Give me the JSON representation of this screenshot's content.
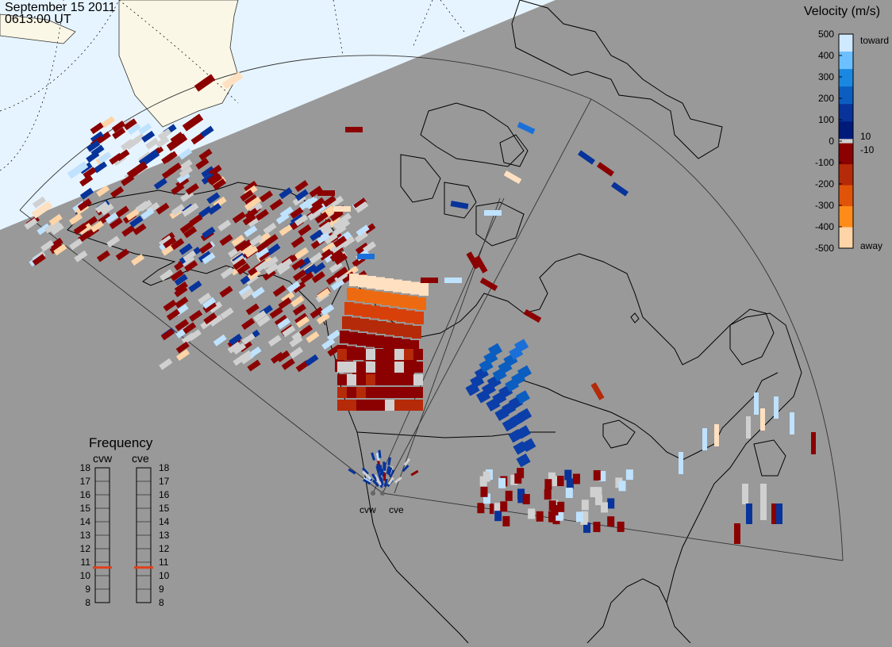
{
  "header": {
    "date": "September 15 2011",
    "time": "0613:00 UT"
  },
  "colorbar": {
    "title": "Velocity (m/s)",
    "ticks": [
      "500",
      "400",
      "300",
      "200",
      "100",
      "0",
      "-100",
      "-200",
      "-300",
      "-400",
      "-500"
    ],
    "tick_values": [
      500,
      400,
      300,
      200,
      100,
      0,
      -100,
      -200,
      -300,
      -400,
      -500
    ],
    "inner_ticks": [
      "10",
      "-10"
    ],
    "toward_label": "toward",
    "away_label": "away",
    "colors_top_to_bottom": [
      "#cfe9ff",
      "#6cc0ff",
      "#1a88e0",
      "#0b5ec0",
      "#07339a",
      "#001a7a",
      "#ffffff",
      "#8b0000",
      "#b52a08",
      "#e0540a",
      "#ff8c1a",
      "#ffd4a6"
    ],
    "zero_band_color": "#d0d0d0"
  },
  "frequency": {
    "title": "Frequency",
    "radars": [
      "cvw",
      "cve"
    ],
    "scale": [
      "18",
      "17",
      "16",
      "15",
      "14",
      "13",
      "12",
      "11",
      "10",
      "9",
      "8"
    ],
    "cvw_mhz": 10.6,
    "cve_mhz": 10.6,
    "marker_color": "#e0401a"
  },
  "stations": [
    {
      "name": "cvw"
    },
    {
      "name": "cve"
    }
  ],
  "map_colors": {
    "night": "#999999",
    "day": "#e6f4ff",
    "land_day": "#fbf7e6",
    "coast": "#000000",
    "ground_scatter": "#d0d0d0"
  }
}
